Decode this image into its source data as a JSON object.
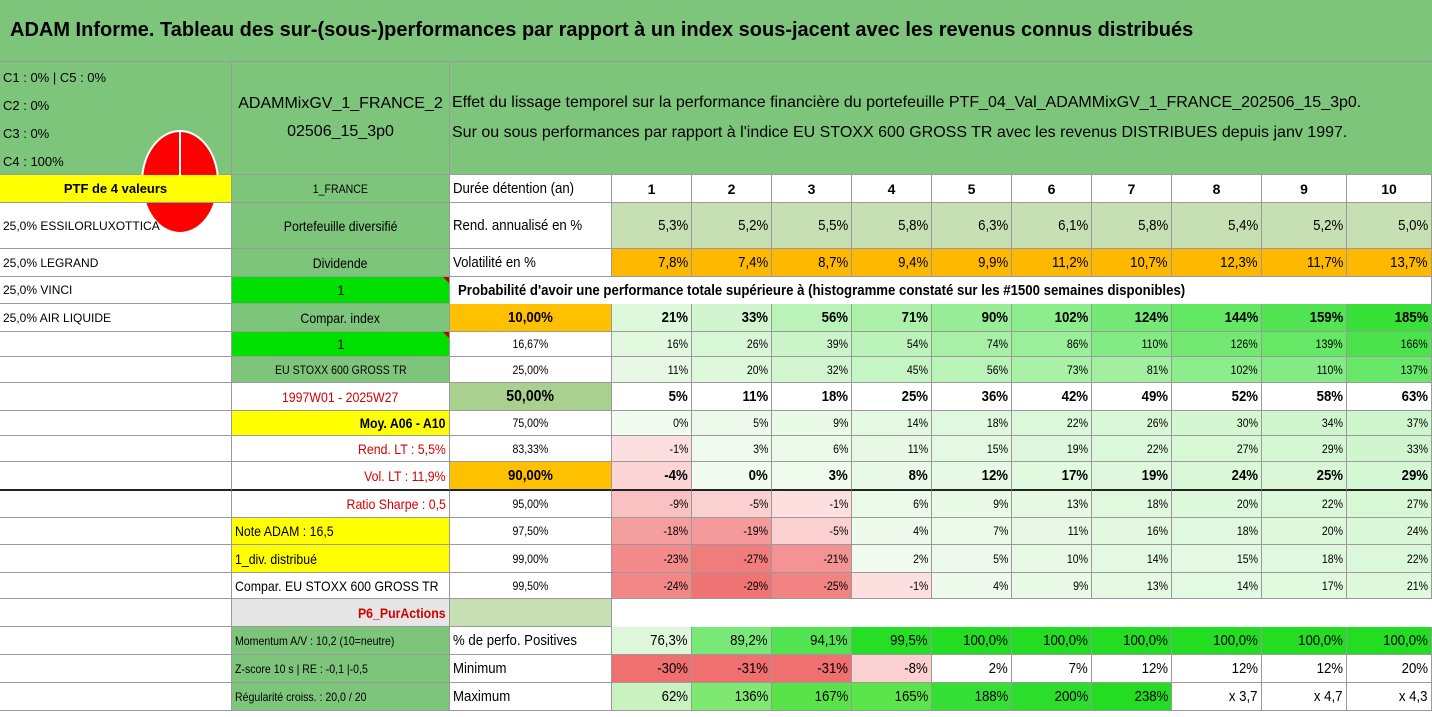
{
  "title": "ADAM Informe. Tableau des sur-(sous-)performances par rapport à un index sous-jacent avec les revenus connus distribués",
  "legend": [
    "C1 : 0% | C5 : 0%",
    "C2 : 0%",
    "C3 : 0%",
    "C4 : 100%"
  ],
  "pie_color": "#ff0000",
  "portfolio_name": [
    "ADAMMixGV_1_FRANCE_2",
    "02506_15_3p0"
  ],
  "description": [
    "Effet du lissage temporel sur la performance financière du portefeuille PTF_04_Val_ADAMMixGV_1_FRANCE_202506_15_3p0.",
    "Sur ou sous performances par rapport à l'indice EU STOXX 600 GROSS TR avec les revenus DISTRIBUES depuis janv 1997."
  ],
  "col_a": [
    "PTF de 4 valeurs",
    "25,0% ESSILORLUXOTTICA",
    "25,0% LEGRAND",
    "25,0% VINCI",
    "25,0% AIR LIQUIDE"
  ],
  "col_b": {
    "france": "1_FRANCE",
    "diversifie": "Portefeuille diversifié",
    "dividende": "Dividende",
    "one_a": "1",
    "compar_index": "Compar. index",
    "one_b": "1",
    "index_name": "EU STOXX 600 GROSS TR",
    "period": "1997W01 - 2025W27",
    "moy": "Moy. A06 - A10",
    "rend": "Rend. LT : 5,5%",
    "vol": "Vol. LT : 11,9%",
    "sharpe": "Ratio Sharpe : 0,5",
    "note": "Note ADAM : 16,5",
    "div": "1_div. distribué",
    "compar_full": "Compar. EU STOXX 600 GROSS TR",
    "p6": "P6_PurActions",
    "momentum": "Momentum A/V : 10,2 (10=neutre)",
    "zscore": "Z-score 10 s | RE : -0,1 |-0,5",
    "regularite": "Régularité croiss. : 20,0 / 20"
  },
  "header_label": "Durée détention (an)",
  "years": [
    "1",
    "2",
    "3",
    "4",
    "5",
    "6",
    "7",
    "8",
    "9",
    "10"
  ],
  "rend_label": "Rend. annualisé en %",
  "rend": [
    "5,3%",
    "5,2%",
    "5,5%",
    "5,8%",
    "6,3%",
    "6,1%",
    "5,8%",
    "5,4%",
    "5,2%",
    "5,0%"
  ],
  "vol_label": "Volatilité en %",
  "vol": [
    "7,8%",
    "7,4%",
    "8,7%",
    "9,4%",
    "9,9%",
    "11,2%",
    "10,7%",
    "12,3%",
    "11,7%",
    "13,7%"
  ],
  "prob_label": "Probabilité d'avoir une performance totale supérieure à (histogramme constaté sur les #1500 semaines disponibles)",
  "prob_rows": [
    {
      "p": "10,00%",
      "v": [
        "21%",
        "33%",
        "56%",
        "71%",
        "90%",
        "102%",
        "124%",
        "144%",
        "159%",
        "185%"
      ]
    },
    {
      "p": "16,67%",
      "v": [
        "16%",
        "26%",
        "39%",
        "54%",
        "74%",
        "86%",
        "110%",
        "126%",
        "139%",
        "166%"
      ]
    },
    {
      "p": "25,00%",
      "v": [
        "11%",
        "20%",
        "32%",
        "45%",
        "56%",
        "73%",
        "81%",
        "102%",
        "110%",
        "137%"
      ]
    },
    {
      "p": "50,00%",
      "v": [
        "5%",
        "11%",
        "18%",
        "25%",
        "36%",
        "42%",
        "49%",
        "52%",
        "58%",
        "63%"
      ]
    },
    {
      "p": "75,00%",
      "v": [
        "0%",
        "5%",
        "9%",
        "14%",
        "18%",
        "22%",
        "26%",
        "30%",
        "34%",
        "37%"
      ]
    },
    {
      "p": "83,33%",
      "v": [
        "-1%",
        "3%",
        "6%",
        "11%",
        "15%",
        "19%",
        "22%",
        "27%",
        "29%",
        "33%"
      ]
    },
    {
      "p": "90,00%",
      "v": [
        "-4%",
        "0%",
        "3%",
        "8%",
        "12%",
        "17%",
        "19%",
        "24%",
        "25%",
        "29%"
      ]
    },
    {
      "p": "95,00%",
      "v": [
        "-9%",
        "-5%",
        "-1%",
        "6%",
        "9%",
        "13%",
        "18%",
        "20%",
        "22%",
        "27%"
      ]
    },
    {
      "p": "97,50%",
      "v": [
        "-18%",
        "-19%",
        "-5%",
        "4%",
        "7%",
        "11%",
        "16%",
        "18%",
        "20%",
        "24%"
      ]
    },
    {
      "p": "99,00%",
      "v": [
        "-23%",
        "-27%",
        "-21%",
        "2%",
        "5%",
        "10%",
        "14%",
        "15%",
        "18%",
        "22%"
      ]
    },
    {
      "p": "99,50%",
      "v": [
        "-24%",
        "-29%",
        "-25%",
        "-1%",
        "4%",
        "9%",
        "13%",
        "14%",
        "17%",
        "21%"
      ]
    }
  ],
  "pos_label": "% de perfo. Positives",
  "pos": [
    "76,3%",
    "89,2%",
    "94,1%",
    "99,5%",
    "100,0%",
    "100,0%",
    "100,0%",
    "100,0%",
    "100,0%",
    "100,0%"
  ],
  "min_label": "Minimum",
  "min": [
    "-30%",
    "-31%",
    "-31%",
    "-8%",
    "2%",
    "7%",
    "12%",
    "12%",
    "12%",
    "20%"
  ],
  "max_label": "Maximum",
  "max": [
    "62%",
    "136%",
    "167%",
    "165%",
    "188%",
    "200%",
    "238%",
    "x 3,7",
    "x 4,7",
    "x 4,3"
  ]
}
